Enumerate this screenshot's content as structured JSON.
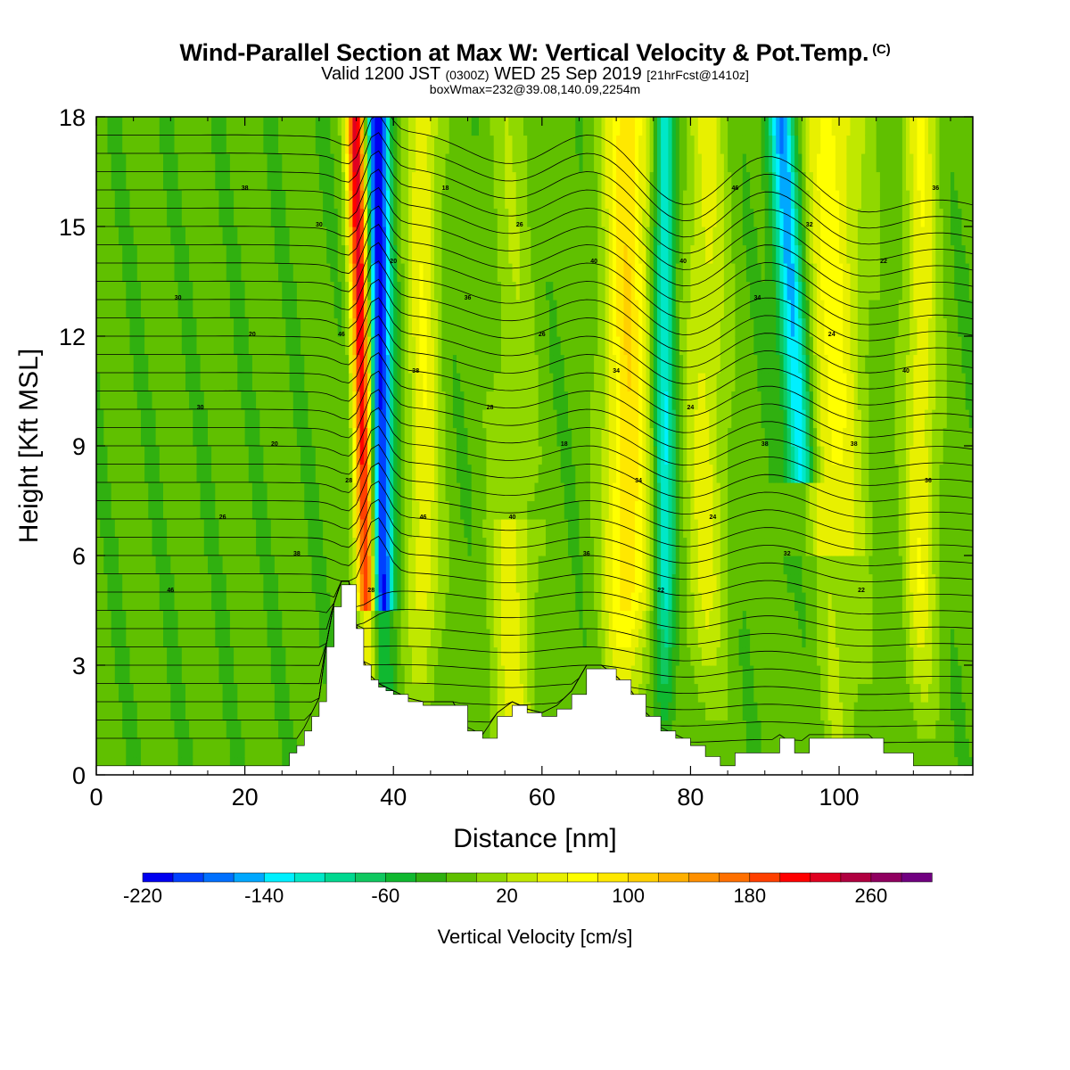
{
  "title": {
    "main": "Wind-Parallel Section at Max W: Vertical Velocity & Pot.Temp.",
    "copyright": "(C)",
    "valid_prefix": "Valid 1200 JST",
    "valid_zulu": "(0300Z)",
    "valid_date": "WED 25 Sep 2019",
    "forecast": "[21hrFcst@1410z]",
    "box": "boxWmax=232@39.08,140.09,2254m"
  },
  "chart_data": {
    "type": "heatmap",
    "xlabel": "Distance [nm]",
    "ylabel": "Height [Kft MSL]",
    "xlim": [
      0,
      118
    ],
    "ylim": [
      0,
      18
    ],
    "x_ticks": [
      0,
      20,
      40,
      60,
      80,
      100
    ],
    "y_ticks": [
      0,
      3,
      6,
      9,
      12,
      15,
      18
    ],
    "colorbar": {
      "title": "Vertical Velocity [cm/s]",
      "min": -220,
      "max": 300,
      "step": 20,
      "tick_values": [
        -220,
        -140,
        -60,
        20,
        100,
        180,
        260
      ],
      "colors": [
        "#0000f0",
        "#0040ff",
        "#0070ff",
        "#00a8ff",
        "#00f0ff",
        "#00e8c8",
        "#00d890",
        "#10c860",
        "#10b830",
        "#30b010",
        "#60c000",
        "#90d800",
        "#c0e800",
        "#e8f000",
        "#ffff00",
        "#ffe800",
        "#ffd000",
        "#ffb000",
        "#ff9000",
        "#ff7000",
        "#ff4000",
        "#ff0000",
        "#e00020",
        "#b00040",
        "#900060",
        "#700080"
      ]
    },
    "terrain_kft": {
      "x": [
        0,
        25,
        26,
        27,
        28,
        29,
        30,
        31,
        32,
        33,
        34,
        35,
        36,
        37,
        38,
        39,
        40,
        42,
        44,
        48,
        50,
        52,
        54,
        56,
        58,
        60,
        62,
        64,
        66,
        68,
        70,
        72,
        74,
        76,
        78,
        80,
        82,
        84,
        86,
        88,
        90,
        92,
        94,
        96,
        98,
        100,
        102,
        104,
        106,
        108,
        110,
        118
      ],
      "height": [
        0.25,
        0.25,
        0.6,
        0.8,
        1.2,
        1.6,
        2.0,
        3.5,
        4.6,
        5.2,
        5.2,
        4.0,
        3.0,
        2.6,
        2.4,
        2.3,
        2.2,
        2.0,
        1.9,
        1.9,
        1.2,
        1.0,
        1.6,
        1.9,
        1.7,
        1.6,
        1.8,
        2.2,
        2.9,
        2.9,
        2.6,
        2.2,
        1.6,
        1.2,
        1.0,
        0.8,
        0.5,
        0.25,
        0.6,
        0.6,
        0.6,
        1.0,
        0.6,
        1.0,
        1.0,
        1.0,
        1.0,
        1.0,
        0.6,
        0.6,
        0.25,
        0.25
      ]
    },
    "updraft_bands_x": [
      36,
      44,
      56,
      70,
      80,
      98,
      110
    ],
    "downdraft_bands_x": [
      38,
      76,
      93
    ],
    "theta_contour_labels": [
      "46",
      "46",
      "40",
      "40",
      "38",
      "38",
      "38",
      "36",
      "34",
      "36",
      "30",
      "28",
      "22",
      "24",
      "26",
      "20",
      "18",
      "46",
      "40",
      "38",
      "36",
      "34",
      "32",
      "30",
      "28",
      "26",
      "24",
      "22",
      "20",
      "18",
      "34",
      "32",
      "30",
      "28",
      "26",
      "24",
      "22",
      "20",
      "46",
      "40",
      "38",
      "36"
    ]
  }
}
